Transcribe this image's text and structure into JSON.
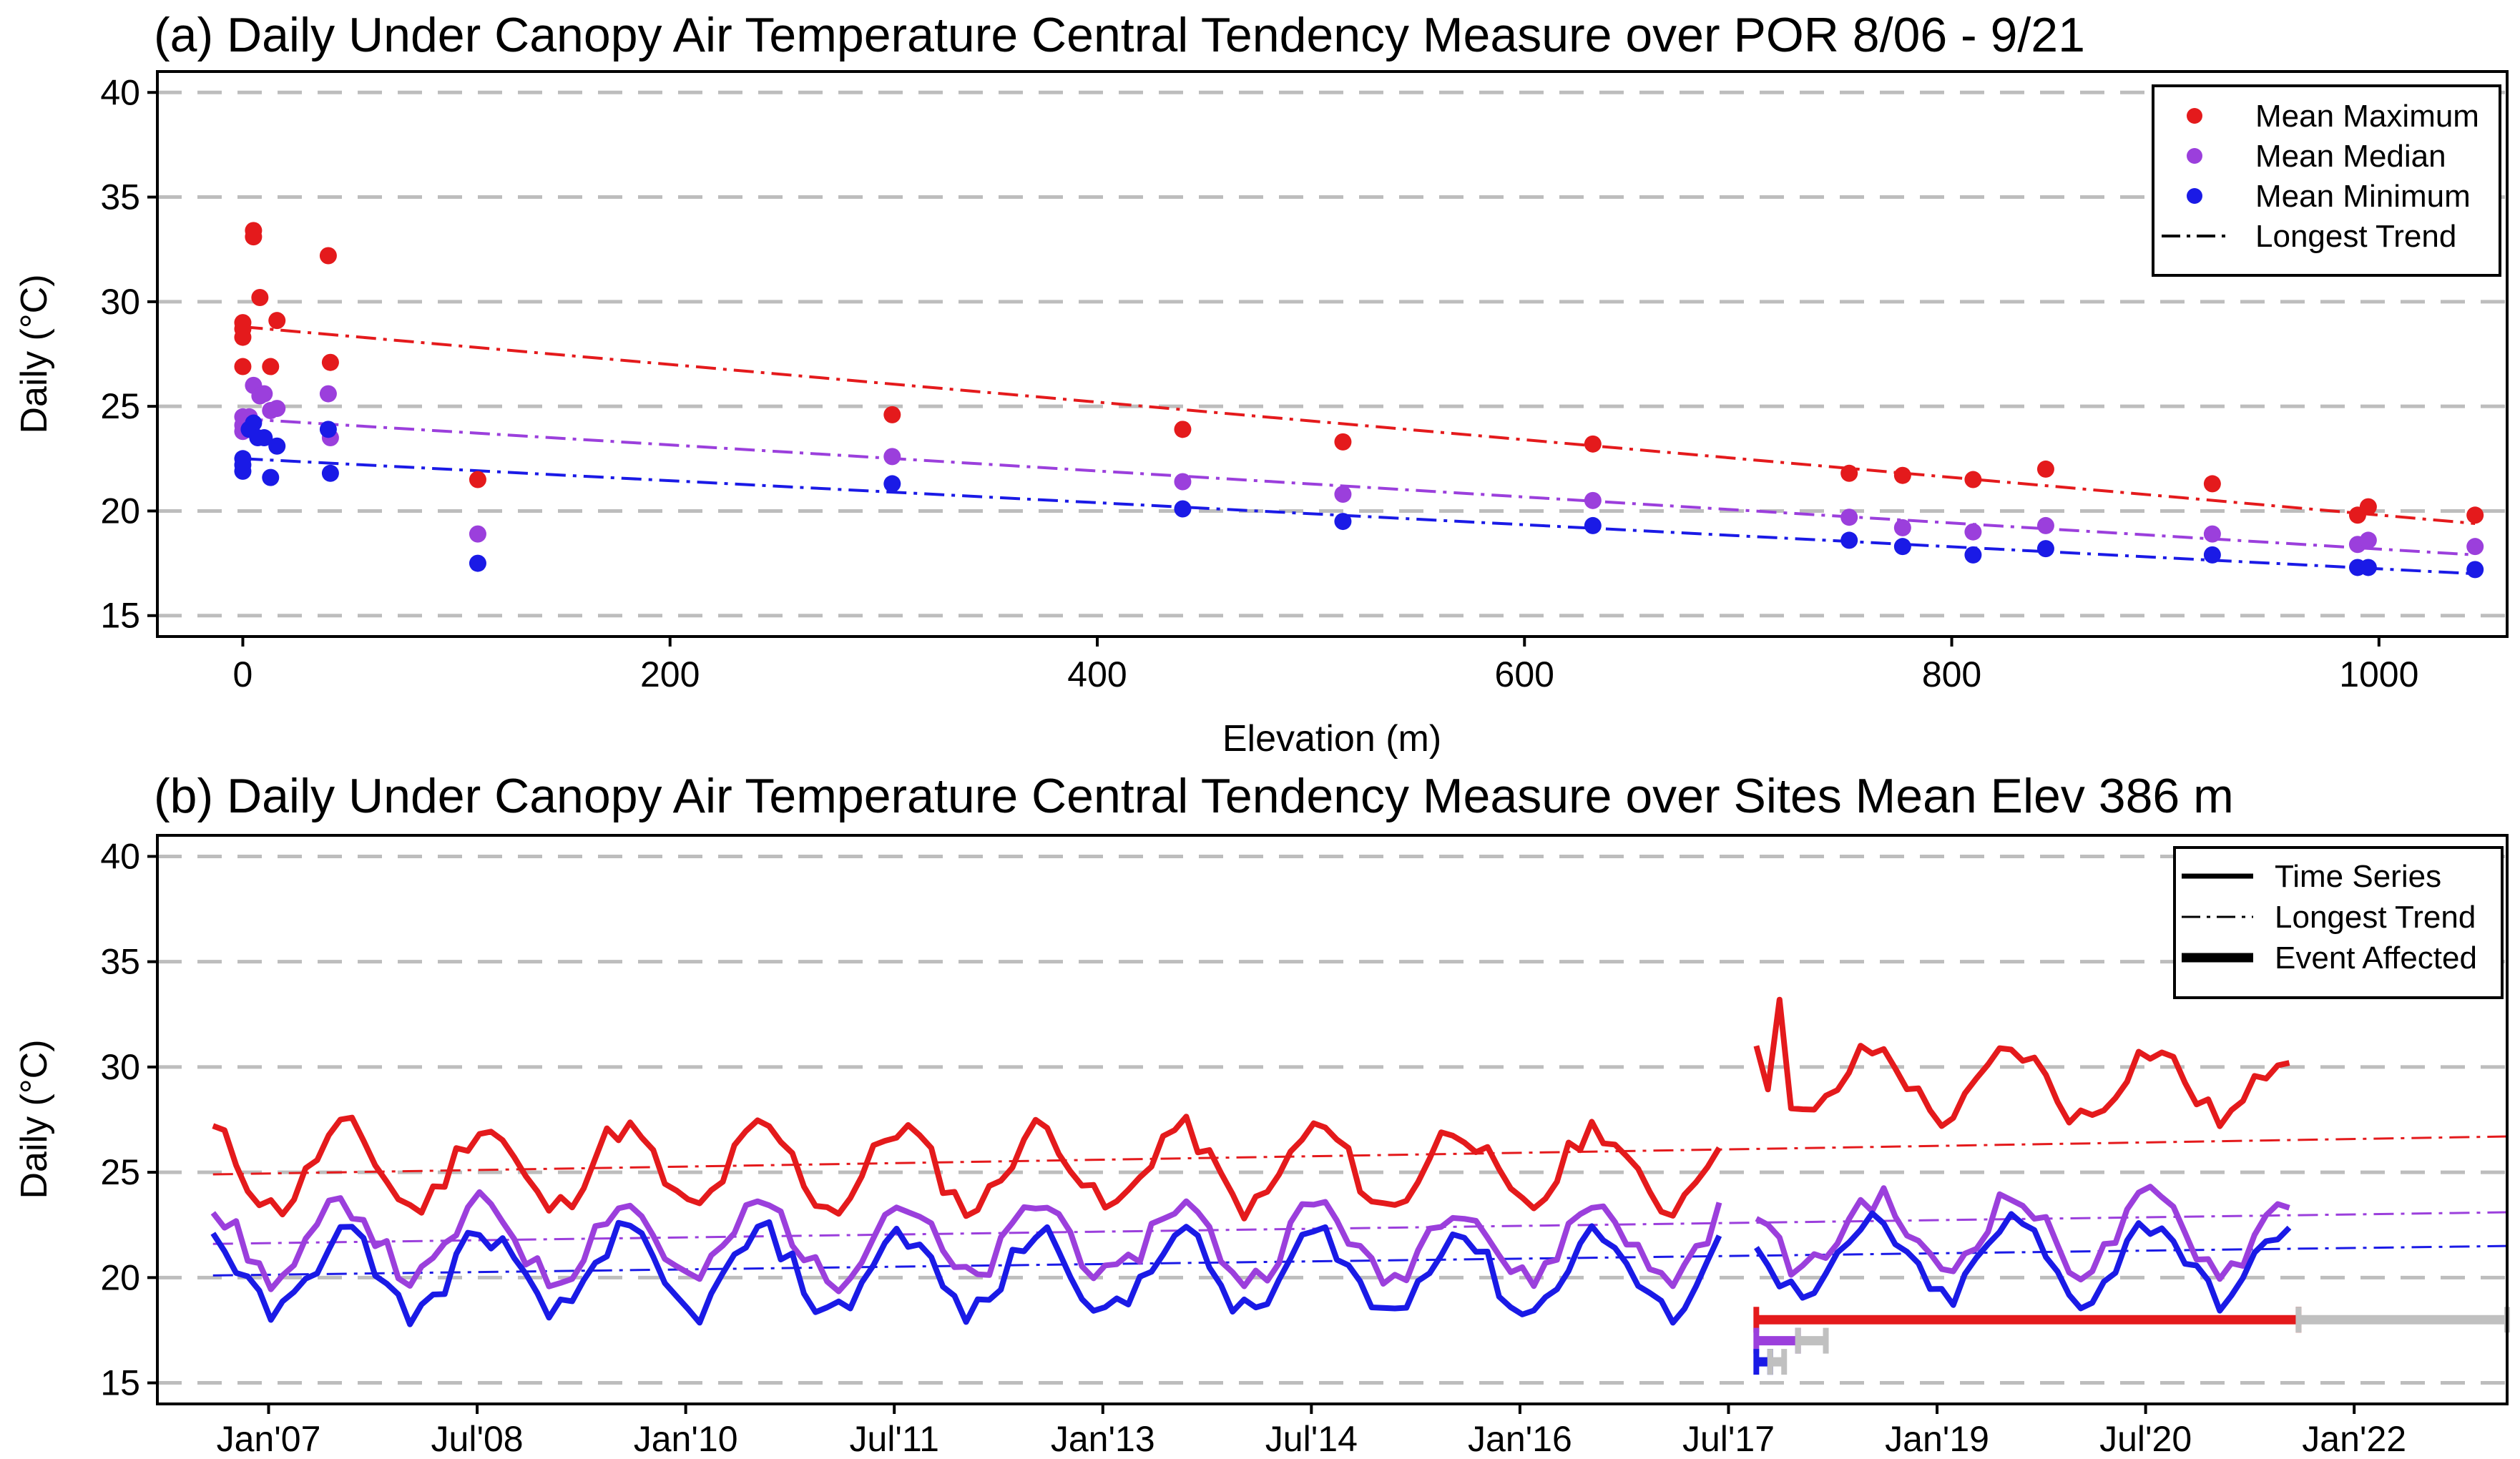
{
  "colors": {
    "max": "#e41a1c",
    "median": "#9b3fdc",
    "min": "#1a1ae6",
    "gray": "#c0c0c0"
  },
  "chart_data": [
    {
      "id": "panel-a",
      "type": "scatter",
      "title": "(a) Daily Under Canopy Air Temperature Central Tendency Measure over POR 8/06 - 9/21",
      "xlabel": "Elevation (m)",
      "ylabel": "Daily (°C)",
      "xlim": [
        -40,
        1060
      ],
      "ylim": [
        14,
        41
      ],
      "xticks": [
        0,
        200,
        400,
        600,
        800,
        1000
      ],
      "yticks": [
        15,
        20,
        25,
        30,
        35,
        40
      ],
      "grid": "horizontal dashed",
      "legend": {
        "position": "top-right",
        "entries": [
          "Mean Maximum",
          "Mean Median",
          "Mean Minimum",
          "Longest Trend"
        ]
      },
      "series": [
        {
          "name": "Mean Maximum",
          "color_key": "max",
          "points": [
            [
              0,
              29.0
            ],
            [
              0,
              28.7
            ],
            [
              0,
              28.3
            ],
            [
              0,
              26.9
            ],
            [
              3,
              24.4
            ],
            [
              5,
              33.4
            ],
            [
              5,
              33.1
            ],
            [
              8,
              30.2
            ],
            [
              13,
              26.9
            ],
            [
              16,
              29.1
            ],
            [
              40,
              32.2
            ],
            [
              41,
              27.1
            ],
            [
              110,
              21.5
            ],
            [
              304,
              24.6
            ],
            [
              440,
              23.9
            ],
            [
              515,
              23.3
            ],
            [
              632,
              23.2
            ],
            [
              752,
              21.8
            ],
            [
              777,
              21.7
            ],
            [
              810,
              21.5
            ],
            [
              844,
              22.0
            ],
            [
              922,
              21.3
            ],
            [
              990,
              19.8
            ],
            [
              995,
              20.2
            ],
            [
              1045,
              19.8
            ]
          ]
        },
        {
          "name": "Mean Median",
          "color_key": "median",
          "points": [
            [
              0,
              24.5
            ],
            [
              0,
              24.1
            ],
            [
              0,
              23.8
            ],
            [
              3,
              24.5
            ],
            [
              5,
              26.0
            ],
            [
              8,
              25.5
            ],
            [
              10,
              25.6
            ],
            [
              13,
              24.8
            ],
            [
              16,
              24.9
            ],
            [
              40,
              25.6
            ],
            [
              41,
              23.5
            ],
            [
              110,
              18.9
            ],
            [
              304,
              22.6
            ],
            [
              440,
              21.4
            ],
            [
              515,
              20.8
            ],
            [
              632,
              20.5
            ],
            [
              752,
              19.7
            ],
            [
              777,
              19.2
            ],
            [
              810,
              19.0
            ],
            [
              844,
              19.3
            ],
            [
              922,
              18.9
            ],
            [
              990,
              18.4
            ],
            [
              995,
              18.6
            ],
            [
              1045,
              18.3
            ]
          ]
        },
        {
          "name": "Mean Minimum",
          "color_key": "min",
          "points": [
            [
              0,
              22.5
            ],
            [
              0,
              22.2
            ],
            [
              0,
              21.9
            ],
            [
              3,
              23.9
            ],
            [
              5,
              24.2
            ],
            [
              7,
              23.5
            ],
            [
              10,
              23.5
            ],
            [
              13,
              21.6
            ],
            [
              16,
              23.1
            ],
            [
              40,
              23.9
            ],
            [
              41,
              21.8
            ],
            [
              110,
              17.5
            ],
            [
              304,
              21.3
            ],
            [
              440,
              20.1
            ],
            [
              515,
              19.5
            ],
            [
              632,
              19.3
            ],
            [
              752,
              18.6
            ],
            [
              777,
              18.3
            ],
            [
              810,
              17.9
            ],
            [
              844,
              18.2
            ],
            [
              922,
              17.9
            ],
            [
              990,
              17.3
            ],
            [
              995,
              17.3
            ],
            [
              1045,
              17.2
            ]
          ]
        }
      ],
      "trends": [
        {
          "name": "Mean Maximum trend",
          "color_key": "max",
          "x": [
            0,
            1045
          ],
          "y": [
            28.8,
            19.4
          ]
        },
        {
          "name": "Mean Median trend",
          "color_key": "median",
          "x": [
            0,
            1045
          ],
          "y": [
            24.4,
            17.9
          ]
        },
        {
          "name": "Mean Minimum trend",
          "color_key": "min",
          "x": [
            0,
            1045
          ],
          "y": [
            22.5,
            17.0
          ]
        }
      ]
    },
    {
      "id": "panel-b",
      "type": "line",
      "title": "(b) Daily Under Canopy Air Temperature Central Tendency Measure over Sites Mean Elev 386 m",
      "xlabel": "",
      "ylabel": "Daily (°C)",
      "xlim": [
        2006.2,
        2023.1
      ],
      "ylim": [
        14,
        41
      ],
      "xticks": [
        2007.0,
        2008.5,
        2010.0,
        2011.5,
        2013.0,
        2014.5,
        2016.0,
        2017.5,
        2019.0,
        2020.5,
        2022.0
      ],
      "xticklabels": [
        "Jan'07",
        "Jul'08",
        "Jan'10",
        "Jul'11",
        "Jan'13",
        "Jul'14",
        "Jan'16",
        "Jul'17",
        "Jan'19",
        "Jul'20",
        "Jan'22"
      ],
      "yticks": [
        15,
        20,
        25,
        30,
        35,
        40
      ],
      "grid": "horizontal dashed",
      "legend": {
        "position": "top-right",
        "entries": [
          "Time Series",
          "Longest Trend",
          "Event Affected"
        ]
      },
      "series": [
        {
          "name": "Maximum",
          "color_key": "max",
          "x_start": 2006.6,
          "x_end": 2017.5,
          "x_start2": 2017.7,
          "x_end2": 2021.6,
          "base": 25.2,
          "amp": 1.9,
          "y_first": 31.0,
          "y_peak": 33.2,
          "base2": 29.2,
          "amp2": 1.6
        },
        {
          "name": "Median",
          "color_key": "median",
          "x_start": 2006.6,
          "x_end": 2017.5,
          "x_start2": 2017.7,
          "x_end2": 2021.6,
          "base": 21.7,
          "amp": 1.8,
          "base2": 22.1,
          "amp2": 1.7
        },
        {
          "name": "Minimum",
          "color_key": "min",
          "x_start": 2006.6,
          "x_end": 2017.5,
          "x_start2": 2017.7,
          "x_end2": 2021.6,
          "base": 20.2,
          "amp": 1.9,
          "base2": 20.8,
          "amp2": 1.8
        }
      ],
      "trends": [
        {
          "name": "Maximum trend",
          "color_key": "max",
          "x": [
            2006.6,
            2023.1
          ],
          "y": [
            24.9,
            26.7
          ]
        },
        {
          "name": "Median trend",
          "color_key": "median",
          "x": [
            2006.6,
            2023.1
          ],
          "y": [
            21.6,
            23.1
          ]
        },
        {
          "name": "Minimum trend",
          "color_key": "min",
          "x": [
            2006.6,
            2023.1
          ],
          "y": [
            20.1,
            21.5
          ]
        }
      ],
      "event_bars": [
        {
          "name": "event-affected-max",
          "color_key": "max",
          "y": 18.0,
          "x": [
            2017.7,
            2021.6
          ]
        },
        {
          "name": "trend-extent-max",
          "color_key": "gray",
          "y": 18.0,
          "x": [
            2021.6,
            2023.1
          ]
        },
        {
          "name": "event-affected-median",
          "color_key": "median",
          "y": 17.0,
          "x": [
            2017.7,
            2018.0
          ]
        },
        {
          "name": "trend-extent-median",
          "color_key": "gray",
          "y": 17.0,
          "x": [
            2018.0,
            2018.2
          ]
        },
        {
          "name": "event-affected-min",
          "color_key": "min",
          "y": 16.0,
          "x": [
            2017.7,
            2017.8
          ]
        },
        {
          "name": "trend-extent-min",
          "color_key": "gray",
          "y": 16.0,
          "x": [
            2017.8,
            2017.9
          ]
        }
      ]
    }
  ]
}
